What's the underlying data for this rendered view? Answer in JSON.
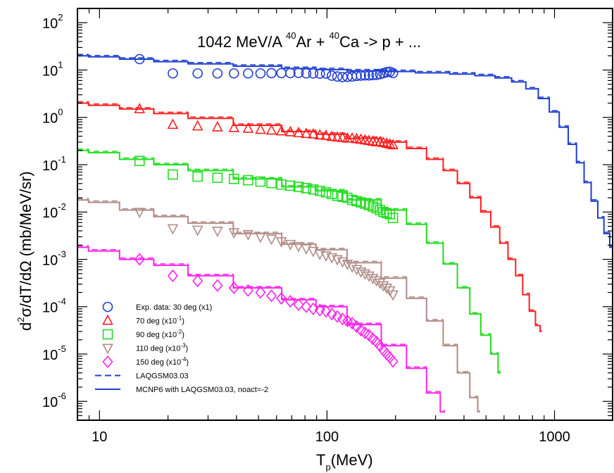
{
  "chart_data": {
    "type": "line",
    "title": "1042 MeV/A 40Ar + 40Ca -> p + ...",
    "title_parts": {
      "pre": "1042 MeV/A ",
      "sup1": "40",
      "mid": "Ar + ",
      "sup2": "40",
      "post": "Ca -> p + ..."
    },
    "xlabel": "Tp(MeV)",
    "xlabel_parts": {
      "main": "T",
      "sub": "p",
      "rest": "(MeV)"
    },
    "ylabel": "d2σ/dT/dΩ (mb/MeV/sr)",
    "ylabel_parts": {
      "a": "d",
      "sup": "2",
      "b": "σ/dT/dΩ (mb/MeV/sr)"
    },
    "x_scale": "log",
    "y_scale": "log",
    "xlim": [
      8,
      1800
    ],
    "ylim": [
      4e-07,
      200
    ],
    "x_tick_labels": [
      {
        "v": 10,
        "t": "10"
      },
      {
        "v": 100,
        "t": "100"
      },
      {
        "v": 1000,
        "t": "1000"
      }
    ],
    "y_tick_labels": [
      {
        "v": 100,
        "base": "10",
        "exp": "2"
      },
      {
        "v": 10,
        "base": "10",
        "exp": "1"
      },
      {
        "v": 1,
        "base": "10",
        "exp": "0"
      },
      {
        "v": 0.1,
        "base": "10",
        "exp": "-1"
      },
      {
        "v": 0.01,
        "base": "10",
        "exp": "-2"
      },
      {
        "v": 0.001,
        "base": "10",
        "exp": "-3"
      },
      {
        "v": 0.0001,
        "base": "10",
        "exp": "-4"
      },
      {
        "v": 1e-05,
        "base": "10",
        "exp": "-5"
      },
      {
        "v": 1e-06,
        "base": "10",
        "exp": "-6"
      }
    ],
    "legend_position": "bottom-left",
    "legend": [
      {
        "marker": "circle",
        "color": "#1f3fd1",
        "text": "Exp. data: 30 deg (x1)",
        "text_main": "Exp. data: 30 deg (x1)",
        "sup": "",
        "tail": ""
      },
      {
        "marker": "triangle-up",
        "color": "#ff2020",
        "text": "70 deg (x10-1)",
        "text_main": "70 deg (x10",
        "sup": "-1",
        "tail": ")"
      },
      {
        "marker": "square",
        "color": "#22dd22",
        "text": "90 deg (x10-2)",
        "text_main": "90 deg (x10",
        "sup": "-2",
        "tail": ")"
      },
      {
        "marker": "triangle-down",
        "color": "#b08c88",
        "text": "110 deg (x10-3)",
        "text_main": "110 deg (x10",
        "sup": "-3",
        "tail": ")"
      },
      {
        "marker": "diamond",
        "color": "#ff22ee",
        "text": "150 deg (x10-4)",
        "text_main": "150 deg (x10",
        "sup": "-4",
        "tail": ")"
      },
      {
        "marker": "dash",
        "color": "#1f3fd1",
        "text": "LAQGSM03.03",
        "text_main": "LAQGSM03.03",
        "sup": "",
        "tail": ""
      },
      {
        "marker": "solid",
        "color": "#1f3fd1",
        "text": "MCNP6 with LAQGSM03.03, noact=-2",
        "text_main": "MCNP6 with LAQGSM03.03, noact=-2",
        "sup": "",
        "tail": ""
      }
    ],
    "series": [
      {
        "name": "30 deg (x1)",
        "color": "#1f3fd1",
        "marker": "circle",
        "exp_points": [
          [
            15,
            17
          ],
          [
            21,
            8.5
          ],
          [
            27,
            8.5
          ],
          [
            33,
            8.5
          ],
          [
            39,
            8.5
          ],
          [
            45,
            8.5
          ],
          [
            51,
            8.5
          ],
          [
            57,
            8.6
          ],
          [
            63,
            8.6
          ],
          [
            69,
            8.6
          ],
          [
            75,
            8.7
          ],
          [
            81,
            8.5
          ],
          [
            87,
            8.5
          ],
          [
            93,
            8.4
          ],
          [
            99,
            8.4
          ],
          [
            105,
            7.6
          ],
          [
            111,
            7.3
          ],
          [
            117,
            7.1
          ],
          [
            123,
            7.2
          ],
          [
            129,
            7.3
          ],
          [
            135,
            7.5
          ],
          [
            141,
            7.6
          ],
          [
            147,
            7.7
          ],
          [
            153,
            7.7
          ],
          [
            159,
            7.8
          ],
          [
            165,
            7.9
          ],
          [
            171,
            8.2
          ],
          [
            177,
            8.6
          ],
          [
            183,
            9.0
          ],
          [
            189,
            9.2
          ],
          [
            195,
            8.6
          ]
        ],
        "calc": [
          [
            8,
            20
          ],
          [
            10,
            19
          ],
          [
            15,
            17
          ],
          [
            20,
            15
          ],
          [
            30,
            13.5
          ],
          [
            50,
            12
          ],
          [
            80,
            10.8
          ],
          [
            100,
            10.2
          ],
          [
            150,
            9.6
          ],
          [
            200,
            9.3
          ],
          [
            300,
            8.7
          ],
          [
            400,
            8.2
          ],
          [
            500,
            7.6
          ],
          [
            600,
            6.8
          ],
          [
            700,
            5.6
          ],
          [
            800,
            4.0
          ],
          [
            900,
            2.5
          ],
          [
            1000,
            1.3
          ],
          [
            1100,
            0.62
          ],
          [
            1200,
            0.27
          ],
          [
            1300,
            0.11
          ],
          [
            1400,
            0.042
          ],
          [
            1500,
            0.017
          ],
          [
            1600,
            0.0075
          ],
          [
            1700,
            0.0035
          ],
          [
            1800,
            0.0018
          ]
        ]
      },
      {
        "name": "70 deg (x10-1)",
        "color": "#ff2020",
        "marker": "triangle-up",
        "exp_points": [
          [
            15,
            1.5
          ],
          [
            21,
            0.7
          ],
          [
            27,
            0.65
          ],
          [
            33,
            0.62
          ],
          [
            39,
            0.6
          ],
          [
            45,
            0.58
          ],
          [
            51,
            0.55
          ],
          [
            57,
            0.53
          ],
          [
            63,
            0.51
          ],
          [
            69,
            0.49
          ],
          [
            75,
            0.47
          ],
          [
            81,
            0.45
          ],
          [
            87,
            0.44
          ],
          [
            93,
            0.42
          ],
          [
            99,
            0.41
          ],
          [
            105,
            0.39
          ],
          [
            111,
            0.38
          ],
          [
            117,
            0.37
          ],
          [
            123,
            0.36
          ],
          [
            129,
            0.36
          ],
          [
            135,
            0.35
          ],
          [
            141,
            0.34
          ],
          [
            147,
            0.33
          ],
          [
            153,
            0.32
          ],
          [
            159,
            0.31
          ],
          [
            165,
            0.3
          ],
          [
            171,
            0.3
          ],
          [
            177,
            0.29
          ],
          [
            183,
            0.28
          ],
          [
            189,
            0.27
          ],
          [
            195,
            0.26
          ]
        ],
        "calc": [
          [
            8,
            2.0
          ],
          [
            10,
            1.8
          ],
          [
            15,
            1.5
          ],
          [
            20,
            1.2
          ],
          [
            30,
            0.95
          ],
          [
            50,
            0.68
          ],
          [
            80,
            0.5
          ],
          [
            100,
            0.44
          ],
          [
            150,
            0.36
          ],
          [
            200,
            0.3
          ],
          [
            250,
            0.22
          ],
          [
            300,
            0.13
          ],
          [
            350,
            0.075
          ],
          [
            400,
            0.04
          ],
          [
            450,
            0.02
          ],
          [
            500,
            0.01
          ],
          [
            550,
            0.0048
          ],
          [
            600,
            0.0022
          ],
          [
            650,
            0.001
          ],
          [
            700,
            0.00045
          ],
          [
            750,
            0.00018
          ],
          [
            800,
            8e-05
          ],
          [
            850,
            4e-05
          ],
          [
            880,
            3e-05
          ]
        ]
      },
      {
        "name": "90 deg (x10-2)",
        "color": "#22dd22",
        "marker": "square",
        "exp_points": [
          [
            15,
            0.12
          ],
          [
            21,
            0.062
          ],
          [
            27,
            0.056
          ],
          [
            33,
            0.053
          ],
          [
            39,
            0.05
          ],
          [
            45,
            0.047
          ],
          [
            51,
            0.044
          ],
          [
            57,
            0.041
          ],
          [
            63,
            0.038
          ],
          [
            69,
            0.036
          ],
          [
            75,
            0.034
          ],
          [
            81,
            0.032
          ],
          [
            87,
            0.03
          ],
          [
            93,
            0.028
          ],
          [
            99,
            0.026
          ],
          [
            105,
            0.024
          ],
          [
            111,
            0.022
          ],
          [
            117,
            0.021
          ],
          [
            123,
            0.02
          ],
          [
            129,
            0.018
          ],
          [
            135,
            0.017
          ],
          [
            141,
            0.016
          ],
          [
            147,
            0.015
          ],
          [
            153,
            0.014
          ],
          [
            159,
            0.013
          ],
          [
            165,
            0.012
          ],
          [
            171,
            0.011
          ],
          [
            177,
            0.01
          ],
          [
            183,
            0.0095
          ],
          [
            189,
            0.009
          ],
          [
            195,
            0.0075
          ]
        ],
        "calc": [
          [
            8,
            0.2
          ],
          [
            10,
            0.18
          ],
          [
            15,
            0.13
          ],
          [
            20,
            0.1
          ],
          [
            30,
            0.075
          ],
          [
            50,
            0.05
          ],
          [
            80,
            0.034
          ],
          [
            100,
            0.028
          ],
          [
            150,
            0.018
          ],
          [
            200,
            0.011
          ],
          [
            250,
            0.0055
          ],
          [
            300,
            0.0022
          ],
          [
            350,
            0.0008
          ],
          [
            400,
            0.00025
          ],
          [
            450,
            7e-05
          ],
          [
            500,
            2.5e-05
          ],
          [
            550,
            1e-05
          ],
          [
            580,
            4e-06
          ]
        ]
      },
      {
        "name": "110 deg (x10-3)",
        "color": "#b08c88",
        "marker": "triangle-down",
        "exp_points": [
          [
            15,
            0.01
          ],
          [
            21,
            0.0045
          ],
          [
            27,
            0.0042
          ],
          [
            33,
            0.004
          ],
          [
            39,
            0.0037
          ],
          [
            45,
            0.0034
          ],
          [
            51,
            0.003
          ],
          [
            57,
            0.0027
          ],
          [
            63,
            0.0024
          ],
          [
            69,
            0.0021
          ],
          [
            75,
            0.0019
          ],
          [
            81,
            0.0017
          ],
          [
            87,
            0.0015
          ],
          [
            93,
            0.0013
          ],
          [
            99,
            0.0012
          ],
          [
            105,
            0.0011
          ],
          [
            111,
            0.001
          ],
          [
            117,
            0.0009
          ],
          [
            123,
            0.0008
          ],
          [
            129,
            0.0007
          ],
          [
            135,
            0.00062
          ],
          [
            141,
            0.00055
          ],
          [
            147,
            0.0005
          ],
          [
            153,
            0.00045
          ],
          [
            159,
            0.0004
          ],
          [
            165,
            0.00036
          ],
          [
            171,
            0.00032
          ],
          [
            177,
            0.00028
          ],
          [
            183,
            0.00025
          ],
          [
            189,
            0.00022
          ],
          [
            195,
            0.00018
          ]
        ],
        "calc": [
          [
            8,
            0.018
          ],
          [
            10,
            0.016
          ],
          [
            15,
            0.011
          ],
          [
            20,
            0.008
          ],
          [
            30,
            0.0058
          ],
          [
            50,
            0.0035
          ],
          [
            80,
            0.0021
          ],
          [
            100,
            0.0016
          ],
          [
            150,
            0.00085
          ],
          [
            200,
            0.0004
          ],
          [
            250,
            0.00015
          ],
          [
            300,
            5e-05
          ],
          [
            350,
            1.5e-05
          ],
          [
            400,
            4e-06
          ],
          [
            450,
            1.2e-06
          ],
          [
            470,
            6e-07
          ]
        ]
      },
      {
        "name": "150 deg (x10-4)",
        "color": "#ff22ee",
        "marker": "diamond",
        "exp_points": [
          [
            15,
            0.001
          ],
          [
            21,
            0.00045
          ],
          [
            27,
            0.00035
          ],
          [
            33,
            0.00028
          ],
          [
            39,
            0.00025
          ],
          [
            45,
            0.00022
          ],
          [
            51,
            0.0002
          ],
          [
            57,
            0.00017
          ],
          [
            63,
            0.00015
          ],
          [
            69,
            0.00013
          ],
          [
            75,
            0.00011
          ],
          [
            81,
            0.0001
          ],
          [
            87,
            9e-05
          ],
          [
            93,
            8.5e-05
          ],
          [
            99,
            8e-05
          ],
          [
            105,
            7e-05
          ],
          [
            111,
            6.2e-05
          ],
          [
            117,
            5.5e-05
          ],
          [
            123,
            5e-05
          ],
          [
            129,
            4.5e-05
          ],
          [
            135,
            3.8e-05
          ],
          [
            141,
            3.2e-05
          ],
          [
            147,
            2.8e-05
          ],
          [
            153,
            2.5e-05
          ],
          [
            159,
            2.1e-05
          ],
          [
            165,
            1.8e-05
          ],
          [
            171,
            1.5e-05
          ],
          [
            177,
            1.2e-05
          ],
          [
            183,
            1e-05
          ],
          [
            189,
            8.5e-06
          ],
          [
            195,
            7e-06
          ]
        ],
        "calc": [
          [
            8,
            0.0018
          ],
          [
            10,
            0.0015
          ],
          [
            15,
            0.001
          ],
          [
            20,
            0.00075
          ],
          [
            30,
            0.00045
          ],
          [
            50,
            0.00025
          ],
          [
            80,
            0.00014
          ],
          [
            100,
            0.0001
          ],
          [
            150,
            4.2e-05
          ],
          [
            200,
            1.5e-05
          ],
          [
            250,
            5e-06
          ],
          [
            300,
            1.5e-06
          ],
          [
            330,
            6e-07
          ]
        ]
      }
    ]
  }
}
